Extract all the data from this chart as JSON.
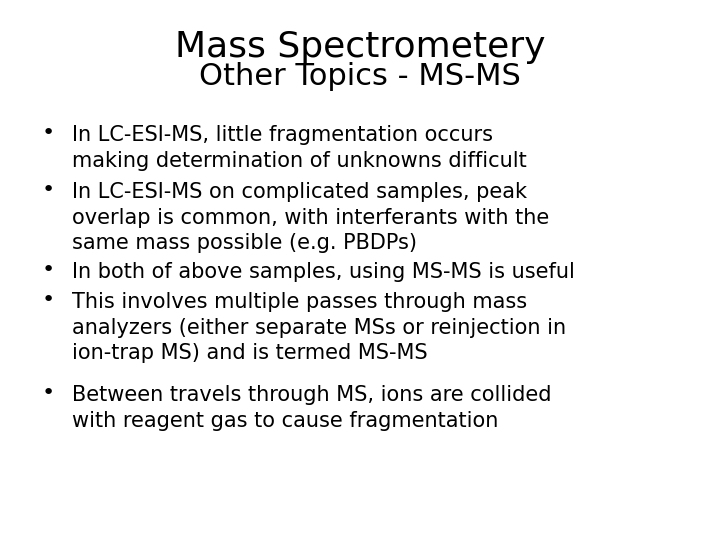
{
  "title_line1": "Mass Spectrometery",
  "title_line2": "Other Topics - MS-MS",
  "bullets": [
    "In LC-ESI-MS, little fragmentation occurs\nmaking determination of unknowns difficult",
    "In LC-ESI-MS on complicated samples, peak\noverlap is common, with interferants with the\nsame mass possible (e.g. PBDPs)",
    "In both of above samples, using MS-MS is useful",
    "This involves multiple passes through mass\nanalyzers (either separate MSs or reinjection in\nion-trap MS) and is termed MS-MS",
    "Between travels through MS, ions are collided\nwith reagent gas to cause fragmentation"
  ],
  "background_color": "#ffffff",
  "text_color": "#000000",
  "title_fontsize": 26,
  "subtitle_fontsize": 22,
  "bullet_fontsize": 15,
  "font_family": "DejaVu Sans Condensed"
}
